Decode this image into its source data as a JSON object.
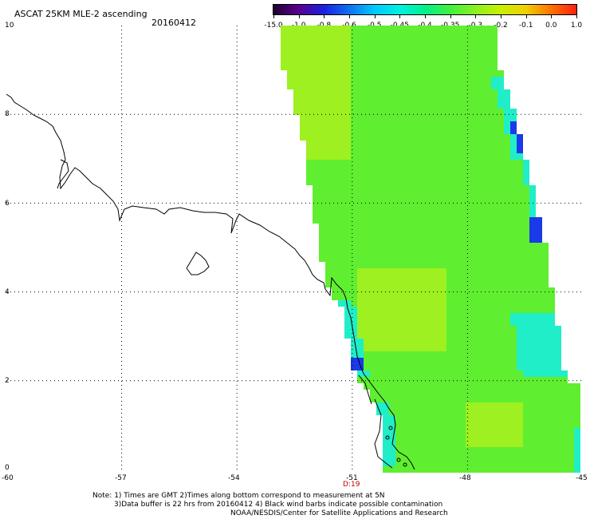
{
  "header": {
    "title": "ASCAT 25KM MLE-2 ascending",
    "date": "20160412"
  },
  "colorbar": {
    "labels": [
      "-15.0",
      "-1.0",
      "-0.8",
      "-0.6",
      "-0.5",
      "-0.45",
      "-0.4",
      "-0.35",
      "-0.3",
      "-0.2",
      "-0.1",
      "0.0",
      "1.0"
    ],
    "colors": [
      "#200030",
      "#5a0090",
      "#1a20e0",
      "#1070f0",
      "#00c8ff",
      "#00f0e0",
      "#00f08c",
      "#40f040",
      "#8cf020",
      "#c8f000",
      "#f0d000",
      "#ff7000",
      "#ff2010"
    ]
  },
  "axes": {
    "y_ticks": [
      "10",
      "8",
      "6",
      "4",
      "2",
      "0"
    ],
    "x_ticks": [
      "-60",
      "-57",
      "-54",
      "-51",
      "-48",
      "-45"
    ],
    "x_extra_label": "D:19"
  },
  "notes": {
    "line1": "Note: 1) Times are GMT 2)Times along bottom correspond to measurement at 5N",
    "line2": "3)Data buffer is 22 hrs from 20160412 4) Black wind barbs indicate possible contamination",
    "line3": "NOAA/NESDIS/Center for Satellite Applications and Research"
  },
  "colors": {
    "swath_green": "#60ee30",
    "swath_yellowgreen": "#9ef020",
    "swath_cyan": "#20eec8",
    "swath_blue": "#1a3ae8"
  }
}
